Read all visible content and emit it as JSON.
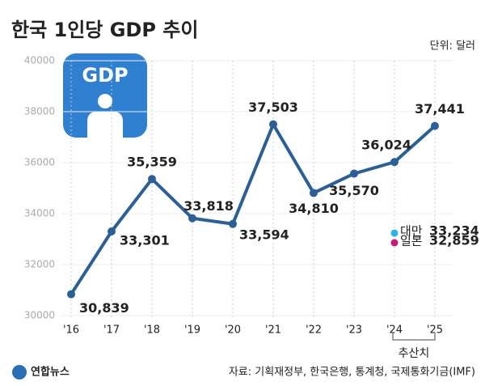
{
  "chart_data": {
    "type": "line",
    "title": "한국 1인당 GDP 추이",
    "unit_label": "단위: 달러",
    "icon_text": "GDP",
    "categories": [
      "'16",
      "'17",
      "'18",
      "'19",
      "'20",
      "'21",
      "'22",
      "'23",
      "'24",
      "'25"
    ],
    "series": [
      {
        "name": "한국",
        "color": "#2a5f97",
        "values": [
          30839,
          33301,
          35359,
          33818,
          33594,
          37503,
          34810,
          35570,
          36024,
          37441
        ],
        "value_labels": [
          "30,839",
          "33,301",
          "35,359",
          "33,818",
          "33,594",
          "37,503",
          "34,810",
          "35,570",
          "36,024",
          "37,441"
        ]
      }
    ],
    "comparisons": [
      {
        "name": "대만",
        "color": "#2bb3e6",
        "value": 33234,
        "value_label": "33,234"
      },
      {
        "name": "일본",
        "color": "#c8197a",
        "value": 32859,
        "value_label": "32,859"
      }
    ],
    "estimate_label": "추산치",
    "ylim": [
      30000,
      40000
    ],
    "yticks": [
      30000,
      32000,
      34000,
      36000,
      38000,
      40000
    ],
    "grid": true,
    "source": "자료: 기획재정부, 한국은행, 통계청, 국제통화기금(IMF)",
    "logo": "연합뉴스"
  }
}
